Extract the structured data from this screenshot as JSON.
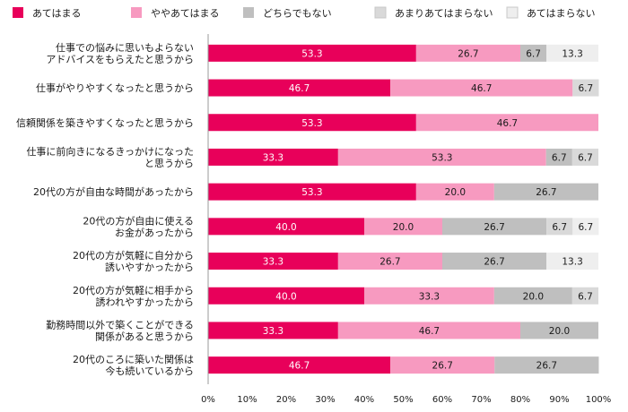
{
  "chart_data": {
    "type": "bar",
    "orientation": "horizontal",
    "stacked": "percent",
    "categories": [
      [
        "仕事での悩みに思いもよらない",
        "アドバイスをもらえたと思うから"
      ],
      [
        "仕事がやりやすくなったと思うから"
      ],
      [
        "信頼関係を築きやすくなったと思うから"
      ],
      [
        "仕事に前向きになるきっかけになった",
        "と思うから"
      ],
      [
        "20代の方が自由な時間があったから"
      ],
      [
        "20代の方が自由に使える",
        "お金があったから"
      ],
      [
        "20代の方が気軽に自分から",
        "誘いやすかったから"
      ],
      [
        "20代の方が気軽に相手から",
        "誘われやすかったから"
      ],
      [
        "勤務時間以外で築くことができる",
        "関係があると思うから"
      ],
      [
        "20代のころに築いた関係は",
        "今も続いているから"
      ]
    ],
    "series": [
      {
        "name": "あてはまる",
        "color": "#e8005a",
        "label_color": "#ffffff",
        "values": [
          53.3,
          46.7,
          53.3,
          33.3,
          53.3,
          40.0,
          33.3,
          40.0,
          33.3,
          46.7
        ]
      },
      {
        "name": "ややあてはまる",
        "color": "#f79ac0",
        "label_color": "#1a1a1a",
        "values": [
          26.7,
          46.7,
          46.7,
          53.3,
          20.0,
          20.0,
          26.7,
          33.3,
          46.7,
          26.7
        ]
      },
      {
        "name": "どちらでもない",
        "color": "#bfbfbf",
        "label_color": "#1a1a1a",
        "values": [
          6.7,
          0,
          0,
          6.7,
          26.7,
          26.7,
          26.7,
          20.0,
          20.0,
          26.7
        ]
      },
      {
        "name": "あまりあてはまらない",
        "color": "#d9d9d9",
        "label_color": "#1a1a1a",
        "values": [
          0,
          6.7,
          0,
          6.7,
          0,
          6.7,
          0,
          6.7,
          0,
          0
        ]
      },
      {
        "name": "あてはまらない",
        "color": "#eeeeee",
        "label_color": "#1a1a1a",
        "values": [
          13.3,
          0,
          0,
          0,
          0,
          6.7,
          13.3,
          0,
          0,
          0
        ]
      }
    ],
    "xlim": [
      0,
      100
    ],
    "xticks": [
      "0%",
      "10%",
      "20%",
      "30%",
      "40%",
      "50%",
      "60%",
      "70%",
      "80%",
      "90%",
      "100%"
    ],
    "legend_position": "top",
    "grid": false
  }
}
